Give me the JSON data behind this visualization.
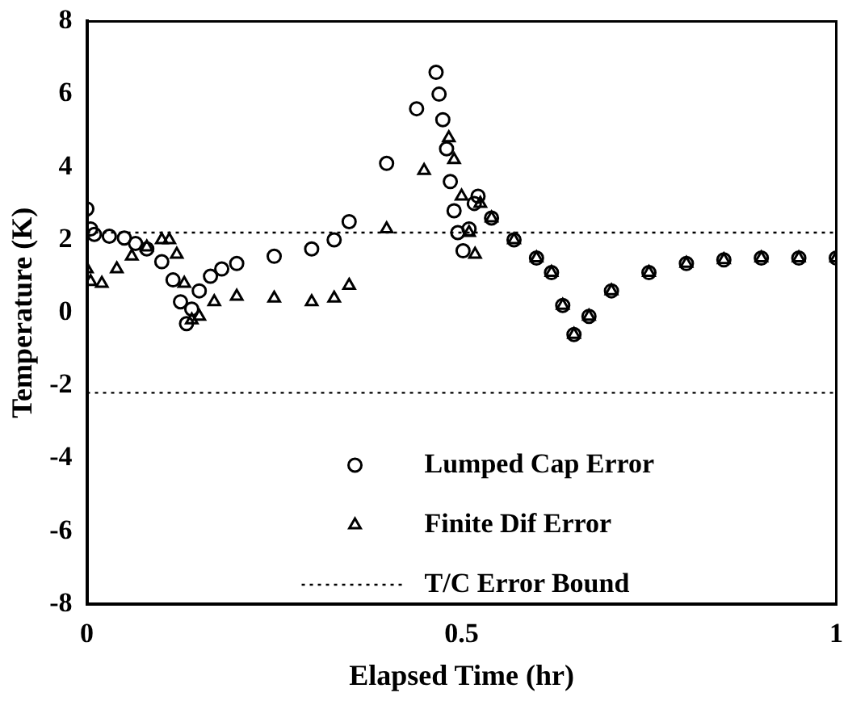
{
  "chart_data": {
    "type": "scatter",
    "xlabel": "Elapsed Time (hr)",
    "ylabel": "Temperature (K)",
    "xlim": [
      0,
      1
    ],
    "xticks": [
      0,
      0.5,
      1
    ],
    "ylim": [
      -8,
      8
    ],
    "yticks": [
      -8,
      -6,
      -4,
      -2,
      0,
      2,
      4,
      6,
      8
    ],
    "grid": false,
    "legend": "bottom right",
    "series": [
      {
        "name": "Lumped Cap Error",
        "color": "#000000",
        "marker": "circle",
        "x": [
          0,
          0.005,
          0.01,
          0.03,
          0.05,
          0.065,
          0.08,
          0.1,
          0.115,
          0.125,
          0.133,
          0.14,
          0.15,
          0.165,
          0.18,
          0.2,
          0.25,
          0.3,
          0.33,
          0.35,
          0.4,
          0.44,
          0.466,
          0.47,
          0.475,
          0.48,
          0.485,
          0.49,
          0.495,
          0.502,
          0.51,
          0.517,
          0.522,
          0.54,
          0.57,
          0.6,
          0.62,
          0.635,
          0.65,
          0.67,
          0.7,
          0.75,
          0.8,
          0.85,
          0.9,
          0.95,
          1.0
        ],
        "values": [
          2.85,
          2.3,
          2.15,
          2.1,
          2.05,
          1.9,
          1.75,
          1.4,
          0.9,
          0.3,
          -0.3,
          0.1,
          0.6,
          1.0,
          1.2,
          1.35,
          1.55,
          1.75,
          2.0,
          2.5,
          4.1,
          5.6,
          6.6,
          6.0,
          5.3,
          4.5,
          3.6,
          2.8,
          2.2,
          1.7,
          2.3,
          3.0,
          3.2,
          2.6,
          2.0,
          1.5,
          1.1,
          0.2,
          -0.6,
          -0.1,
          0.6,
          1.1,
          1.35,
          1.45,
          1.5,
          1.5,
          1.5
        ]
      },
      {
        "name": "Finite Dif Error",
        "color": "#000000",
        "marker": "triangle",
        "x": [
          0,
          0.005,
          0.02,
          0.04,
          0.06,
          0.08,
          0.1,
          0.11,
          0.12,
          0.13,
          0.14,
          0.15,
          0.17,
          0.2,
          0.25,
          0.3,
          0.33,
          0.35,
          0.4,
          0.45,
          0.483,
          0.49,
          0.5,
          0.51,
          0.518,
          0.525,
          0.54,
          0.57,
          0.6,
          0.62,
          0.635,
          0.65,
          0.67,
          0.7,
          0.75,
          0.8,
          0.85,
          0.9,
          0.95,
          1.0
        ],
        "values": [
          1.2,
          0.85,
          0.8,
          1.2,
          1.55,
          1.8,
          2.0,
          2.0,
          1.6,
          0.8,
          -0.2,
          -0.1,
          0.3,
          0.45,
          0.4,
          0.3,
          0.4,
          0.75,
          2.3,
          3.9,
          4.8,
          4.2,
          3.2,
          2.2,
          1.6,
          3.0,
          2.6,
          2.0,
          1.5,
          1.1,
          0.2,
          -0.6,
          -0.1,
          0.6,
          1.1,
          1.35,
          1.45,
          1.5,
          1.5,
          1.5
        ]
      }
    ],
    "ref_lines": [
      {
        "axis": "y",
        "value": 2.2,
        "label": "T/C Error Bound",
        "color": "#000000",
        "line_style": "dotted"
      },
      {
        "axis": "y",
        "value": -2.2,
        "color": "#000000",
        "line_style": "dotted"
      }
    ]
  }
}
